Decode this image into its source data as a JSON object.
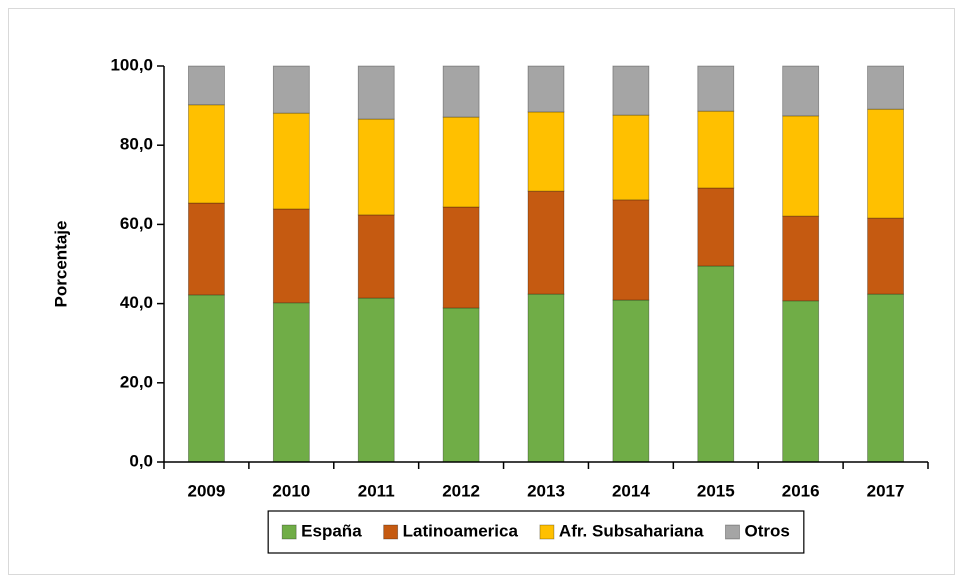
{
  "chart_data": {
    "type": "stacked_bar",
    "y_label": "Porcentaje",
    "categories": [
      "2009",
      "2010",
      "2011",
      "2012",
      "2013",
      "2014",
      "2015",
      "2016",
      "2017"
    ],
    "series": [
      {
        "name": "España",
        "color": "#70ad47",
        "values": [
          42.2,
          40.2,
          41.4,
          38.9,
          42.4,
          40.9,
          49.5,
          40.7,
          42.4
        ]
      },
      {
        "name": "Latinoamerica",
        "color": "#c55a11",
        "values": [
          23.2,
          23.7,
          21.0,
          25.5,
          26.0,
          25.3,
          19.7,
          21.4,
          19.2
        ]
      },
      {
        "name": "Afr. Subsahariana",
        "color": "#ffc000",
        "values": [
          24.8,
          24.2,
          24.2,
          22.7,
          20.0,
          21.4,
          19.4,
          25.3,
          27.5
        ]
      },
      {
        "name": "Otros",
        "color": "#a5a5a5",
        "values": [
          9.8,
          11.9,
          13.4,
          12.9,
          11.6,
          12.4,
          11.4,
          12.6,
          10.9
        ]
      }
    ],
    "ylim": [
      0,
      100
    ],
    "yticks": [
      {
        "value": 0,
        "label": "0,0"
      },
      {
        "value": 20,
        "label": "20,0"
      },
      {
        "value": 40,
        "label": "40,0"
      },
      {
        "value": 60,
        "label": "60,0"
      },
      {
        "value": 80,
        "label": "80,0"
      },
      {
        "value": 100,
        "label": "100,0"
      }
    ],
    "legend": "bottom"
  }
}
